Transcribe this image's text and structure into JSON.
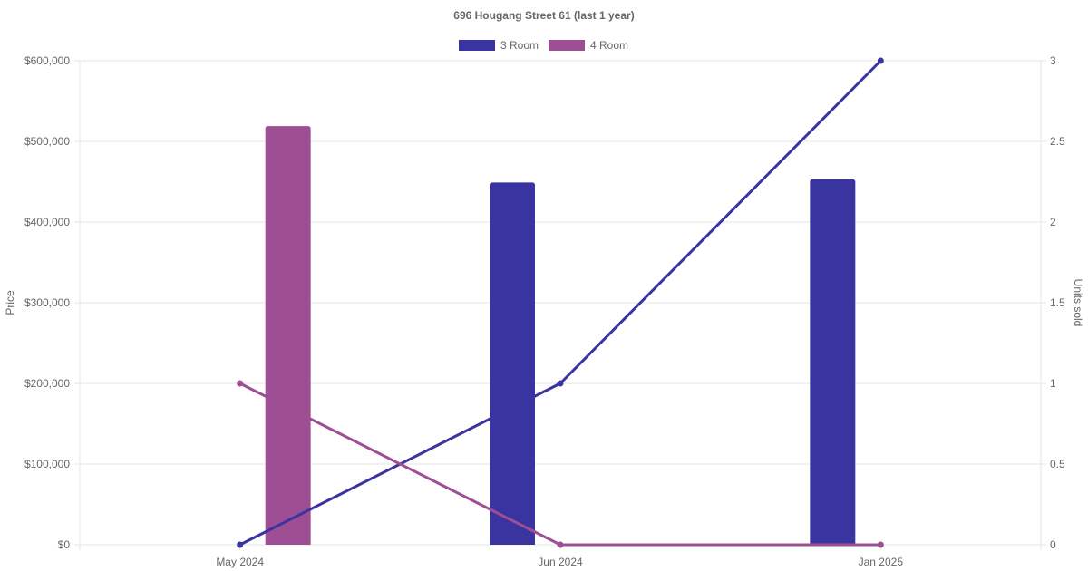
{
  "chart_data": {
    "type": "bar",
    "title": "696 Hougang Street 61 (last 1 year)",
    "categories": [
      "May 2024",
      "Jun 2024",
      "Jan 2025"
    ],
    "ylabel": "Price",
    "y2label": "Units sold",
    "ylim": [
      0,
      600000
    ],
    "y2lim": [
      0,
      3
    ],
    "yticks": [
      "$0",
      "$100,000",
      "$200,000",
      "$300,000",
      "$400,000",
      "$500,000",
      "$600,000"
    ],
    "y2ticks": [
      "0",
      "0.5",
      "1",
      "1.5",
      "2",
      "2.5",
      "3"
    ],
    "grid": true,
    "legend_position": "top-center",
    "series": [
      {
        "name": "3 Room",
        "color": "#3a34a0",
        "price": [
          null,
          449000,
          453000
        ],
        "units_sold": [
          0,
          1,
          3
        ]
      },
      {
        "name": "4 Room",
        "color": "#9e4f93",
        "price": [
          519000,
          null,
          null
        ],
        "units_sold": [
          1,
          0,
          0
        ]
      }
    ]
  }
}
